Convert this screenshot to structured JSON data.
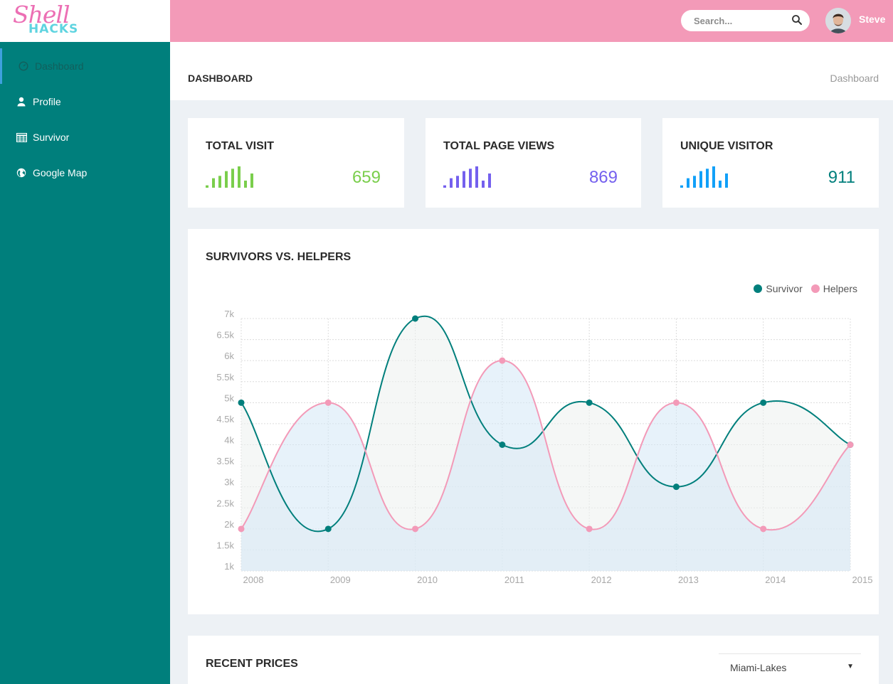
{
  "header": {
    "logo_top": "Shell",
    "logo_bottom": "HACKS",
    "search_placeholder": "Search...",
    "user_name": "Steve"
  },
  "sidebar": {
    "items": [
      {
        "label": "Dashboard",
        "icon": "dashboard-icon",
        "active": true
      },
      {
        "label": "Profile",
        "icon": "user-icon",
        "active": false
      },
      {
        "label": "Survivor",
        "icon": "table-icon",
        "active": false
      },
      {
        "label": "Google Map",
        "icon": "globe-icon",
        "active": false
      }
    ]
  },
  "page": {
    "title": "DASHBOARD",
    "breadcrumb": "Dashboard"
  },
  "stats": [
    {
      "title": "TOTAL VISIT",
      "value": "659",
      "color": "#7ace4c",
      "bars": [
        1,
        4,
        5,
        7,
        8,
        9,
        3,
        6
      ]
    },
    {
      "title": "TOTAL PAGE VIEWS",
      "value": "869",
      "color": "#7460ee",
      "bars": [
        1,
        4,
        5,
        7,
        8,
        9,
        3,
        6
      ]
    },
    {
      "title": "UNIQUE VISITOR",
      "value": "911",
      "color": "#11a0f8",
      "bars": [
        1,
        4,
        5,
        7,
        8,
        9,
        3,
        6
      ]
    }
  ],
  "value_colors": [
    "#7ace4c",
    "#7460ee",
    "#007f7c"
  ],
  "chart_data": {
    "type": "line",
    "title": "SURVIVORS VS. HELPERS",
    "categories": [
      "2008",
      "2009",
      "2010",
      "2011",
      "2012",
      "2013",
      "2014",
      "2015"
    ],
    "tick_labels": [
      "7k",
      "6.5k",
      "6k",
      "5.5k",
      "5k",
      "4.5k",
      "4k",
      "3.5k",
      "3k",
      "2.5k",
      "2k",
      "1.5k",
      "1k"
    ],
    "ylim": [
      1000,
      7000
    ],
    "grid": true,
    "legend": "top-right",
    "series": [
      {
        "name": "Survivor",
        "color": "#007f7c",
        "values": [
          5000,
          2000,
          7000,
          4000,
          5000,
          3000,
          5000,
          4000
        ]
      },
      {
        "name": "Helpers",
        "color": "#f39ab8",
        "values": [
          2000,
          5000,
          2000,
          6000,
          2000,
          5000,
          2000,
          4000
        ]
      }
    ]
  },
  "prices": {
    "title": "RECENT PRICES",
    "selected_location": "Miami-Lakes"
  }
}
